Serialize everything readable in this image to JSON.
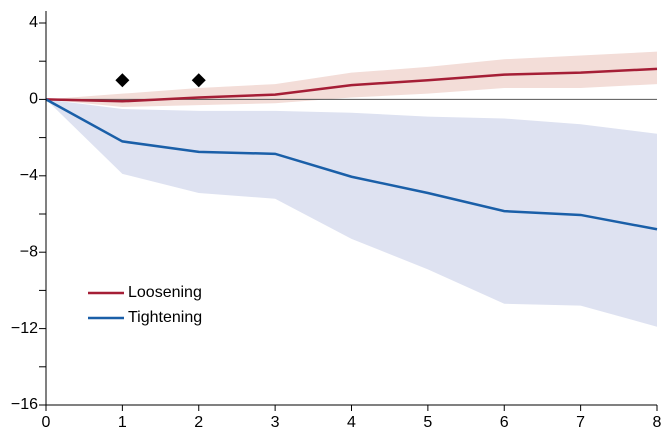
{
  "chart_data": {
    "type": "line",
    "x": [
      0,
      1,
      2,
      3,
      4,
      5,
      6,
      7,
      8
    ],
    "xlim": [
      0,
      8
    ],
    "xticks": [
      0,
      1,
      2,
      3,
      4,
      5,
      6,
      7,
      8
    ],
    "ylim": [
      -16,
      4
    ],
    "yticks": [
      {
        "value": 4,
        "label": "4"
      },
      {
        "value": 0,
        "label": "0"
      },
      {
        "value": -4,
        "label": "−4"
      },
      {
        "value": -8,
        "label": "−8"
      },
      {
        "value": -12,
        "label": "−12"
      },
      {
        "value": -16,
        "label": "−16"
      }
    ],
    "yticks_minor": [
      2,
      -2,
      -6,
      -10,
      -14
    ],
    "zero_line": true,
    "series": [
      {
        "name": "Loosening",
        "color": "#a51e36",
        "band_color": "#f3ddd8",
        "values": [
          0,
          -0.1,
          0.1,
          0.25,
          0.75,
          1.0,
          1.3,
          1.4,
          1.6
        ],
        "lower": [
          0,
          -0.4,
          -0.3,
          -0.2,
          0.1,
          0.3,
          0.6,
          0.6,
          0.8
        ],
        "upper": [
          0,
          0.3,
          0.6,
          0.8,
          1.4,
          1.7,
          2.1,
          2.3,
          2.5
        ]
      },
      {
        "name": "Tightening",
        "color": "#1a5fa8",
        "band_color": "#dee2f1",
        "values": [
          0,
          -2.2,
          -2.75,
          -2.85,
          -4.05,
          -4.9,
          -5.85,
          -6.05,
          -6.8
        ],
        "lower": [
          0,
          -3.9,
          -4.9,
          -5.2,
          -7.3,
          -8.9,
          -10.7,
          -10.8,
          -11.9
        ],
        "upper": [
          0,
          -0.5,
          -0.6,
          -0.6,
          -0.7,
          -0.9,
          -1.0,
          -1.3,
          -1.8
        ]
      }
    ],
    "markers": {
      "x": [
        1,
        2
      ],
      "values": [
        1,
        1
      ],
      "color": "#000"
    }
  }
}
